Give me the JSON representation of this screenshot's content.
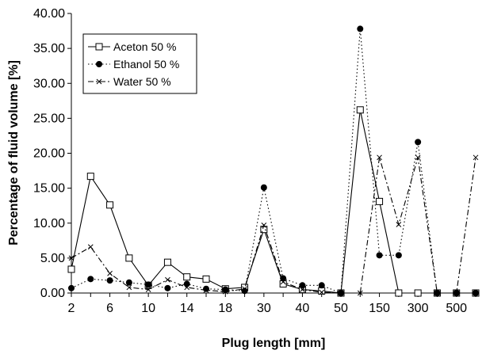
{
  "chart_data": {
    "type": "line",
    "xlabel": "Plug length [mm]",
    "ylabel": "Percentage of fluid volume [%]",
    "ylim": [
      0,
      40
    ],
    "y_tick_labels": [
      "0.00",
      "5.00",
      "10.00",
      "15.00",
      "20.00",
      "25.00",
      "30.00",
      "35.00",
      "40.00"
    ],
    "x_tick_labels": [
      "2",
      "6",
      "10",
      "14",
      "18",
      "30",
      "40",
      "50",
      "150",
      "300",
      "500"
    ],
    "grid": false,
    "legend_position": "top-left",
    "x": [
      2,
      4,
      6,
      8,
      10,
      12,
      14,
      16,
      18,
      20,
      30,
      35,
      40,
      45,
      50,
      100,
      150,
      200,
      300,
      400,
      500,
      600
    ],
    "series": [
      {
        "name": "Aceton 50 %",
        "line_style": "solid",
        "marker": "open-square",
        "values": [
          3.4,
          16.7,
          12.6,
          5.0,
          1.1,
          4.4,
          2.3,
          2.0,
          0.6,
          0.8,
          9.1,
          1.3,
          0.5,
          0.3,
          0.0,
          26.2,
          13.1,
          0.0,
          0.0,
          0.0,
          0.0,
          0.0
        ]
      },
      {
        "name": "Ethanol 50 %",
        "line_style": "dotted",
        "marker": "filled-circle",
        "values": [
          0.7,
          2.0,
          1.8,
          1.5,
          1.2,
          0.7,
          1.3,
          0.6,
          0.5,
          0.3,
          15.1,
          2.1,
          1.1,
          1.1,
          0.0,
          37.8,
          5.4,
          5.4,
          21.6,
          0.0,
          0.0,
          0.0
        ]
      },
      {
        "name": "Water 50 %",
        "line_style": "dash-dot",
        "marker": "x",
        "values": [
          5.0,
          6.6,
          2.8,
          0.8,
          0.5,
          1.9,
          0.8,
          0.4,
          0.2,
          0.6,
          9.7,
          1.6,
          0.5,
          0.1,
          0.0,
          0.0,
          19.4,
          9.8,
          19.4,
          0.0,
          0.0,
          19.4
        ]
      }
    ]
  }
}
